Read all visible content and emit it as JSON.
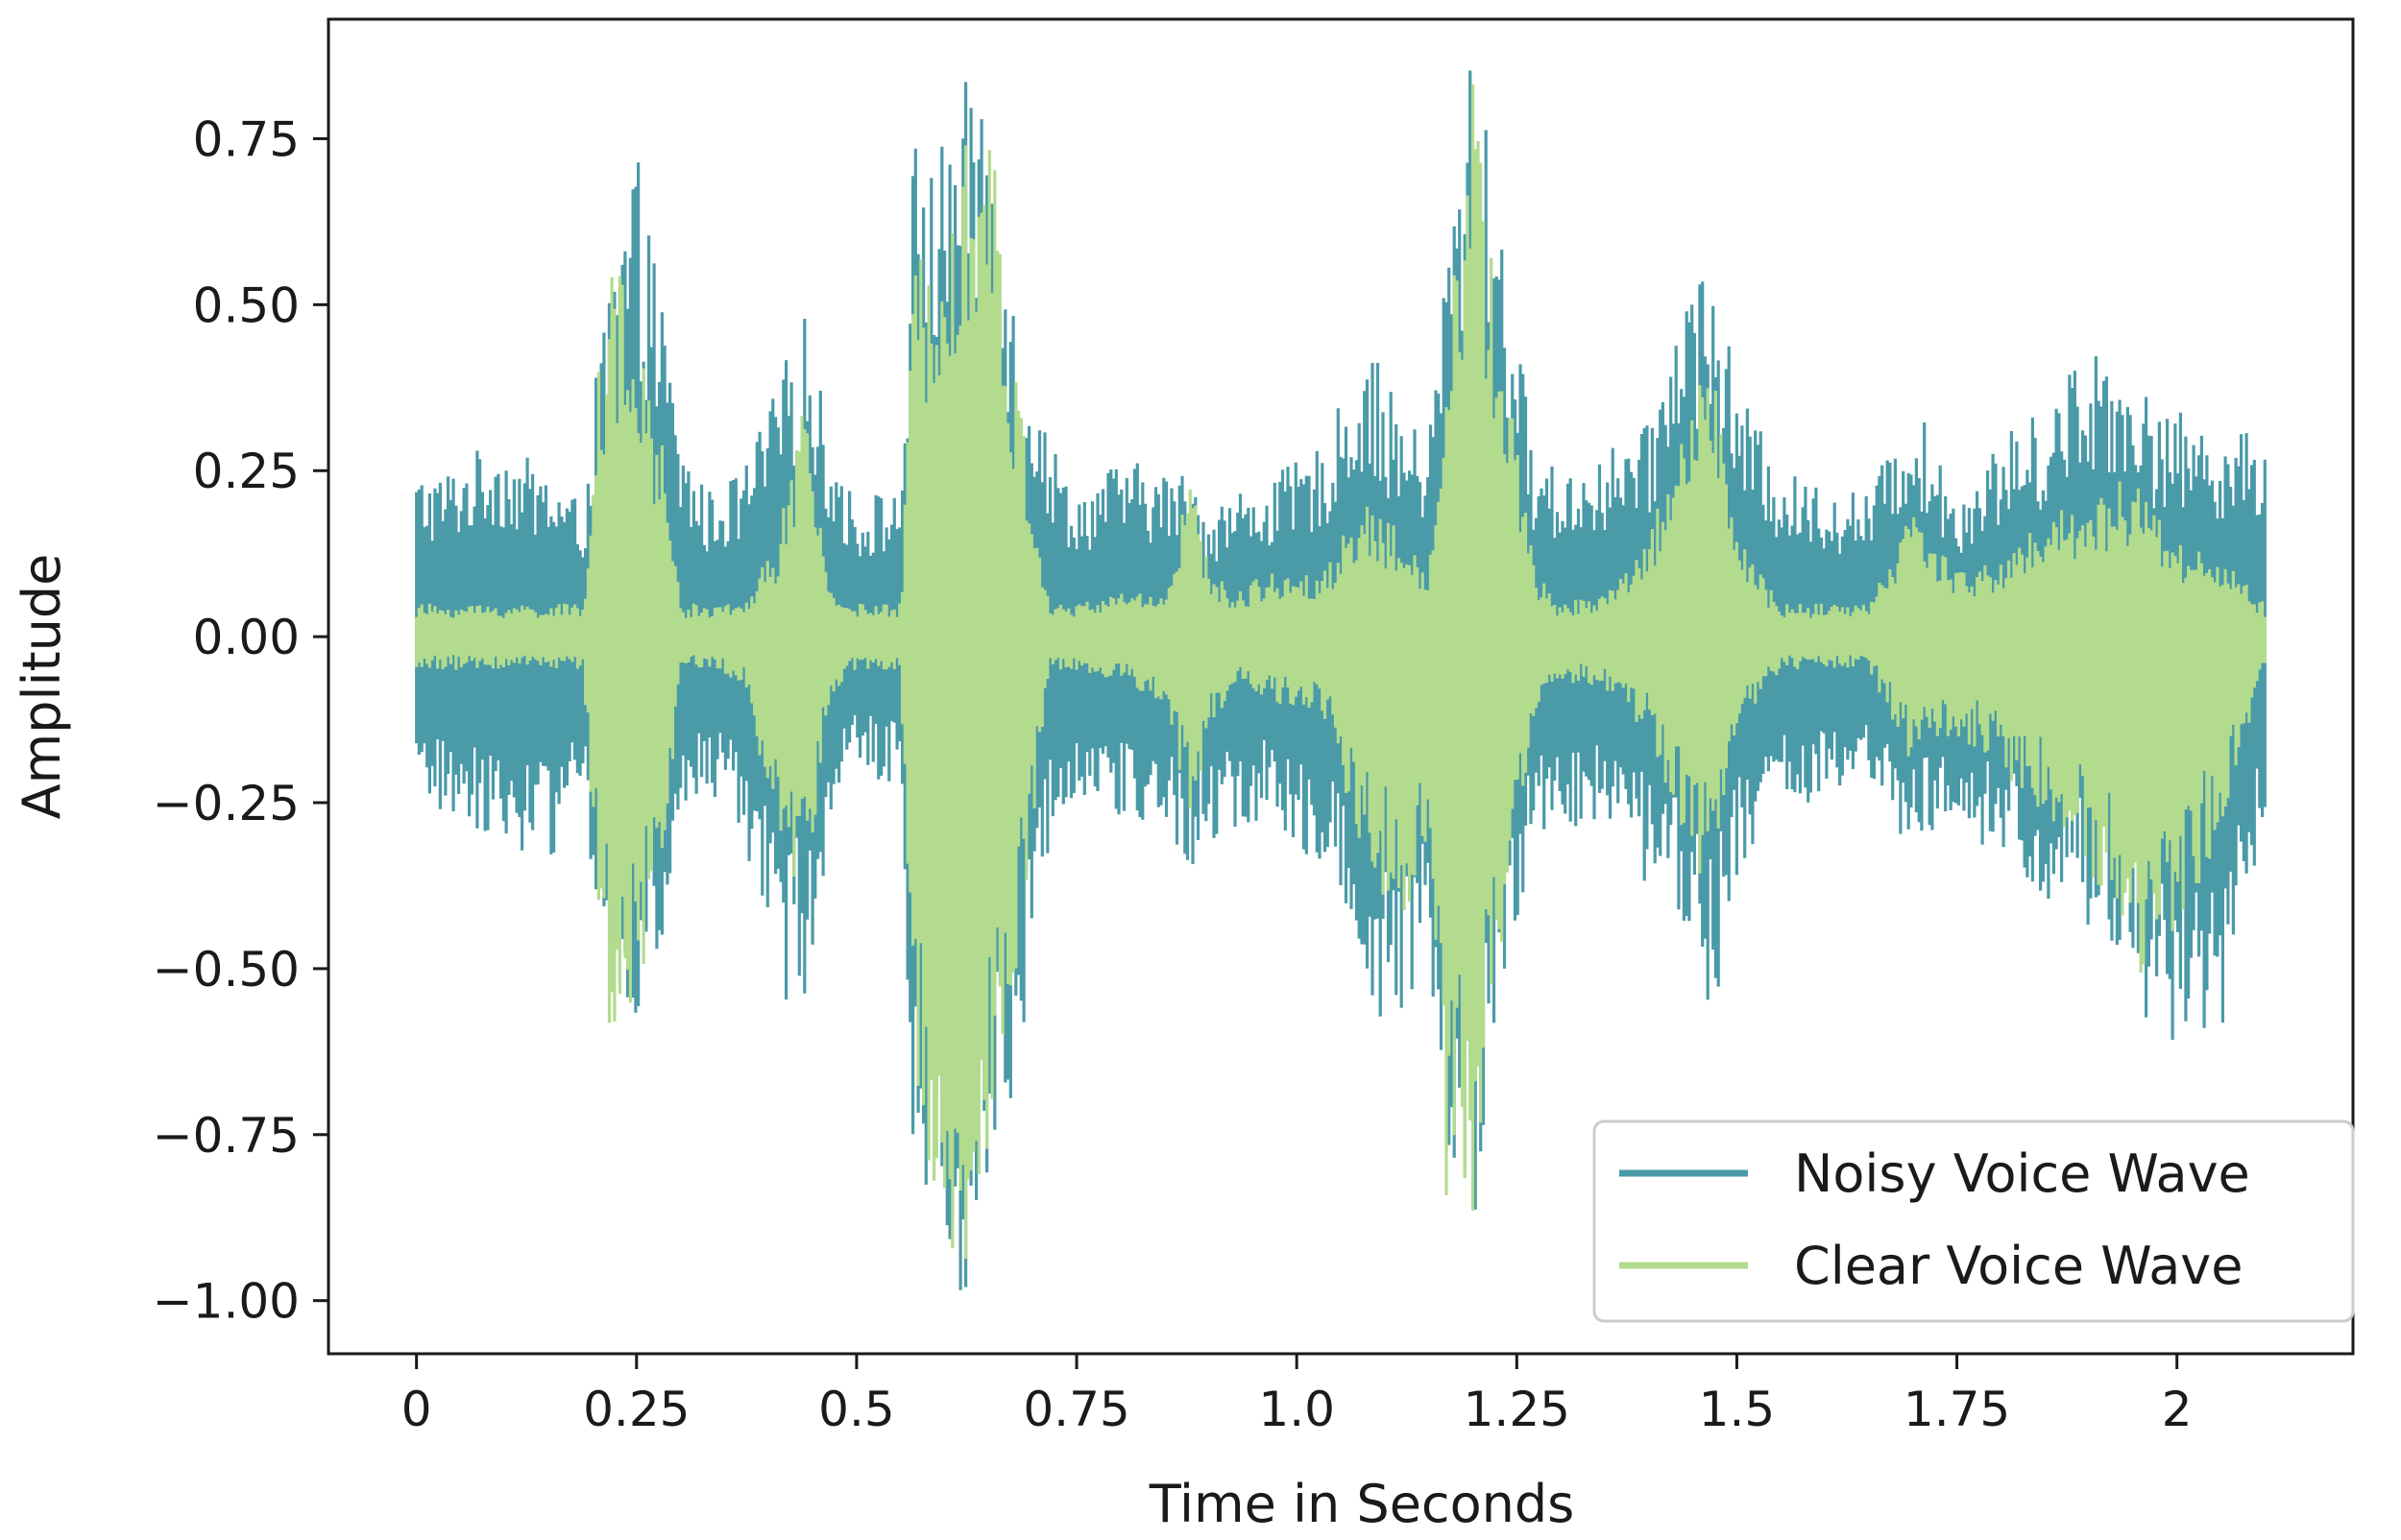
{
  "chart_data": {
    "type": "line",
    "title": "",
    "xlabel": "Time in Seconds",
    "ylabel": "Amplitude",
    "xlim": [
      -0.1,
      2.2
    ],
    "ylim": [
      -1.08,
      0.93
    ],
    "x_ticks": [
      0,
      0.25,
      0.5,
      0.75,
      1.0,
      1.25,
      1.5,
      1.75,
      2
    ],
    "x_tick_labels": [
      "0",
      "0.25",
      "0.5",
      "0.75",
      "1.0",
      "1.25",
      "1.5",
      "1.75",
      "2"
    ],
    "y_ticks": [
      0.75,
      0.5,
      0.25,
      0.0,
      -0.25,
      -0.5,
      -0.75,
      -1.0
    ],
    "y_tick_labels": [
      "0.75",
      "0.50",
      "0.25",
      "0.00",
      "−0.25",
      "−0.50",
      "−0.75",
      "−1.00"
    ],
    "grid": false,
    "legend_position": "lower-right",
    "duration_seconds": 2.1,
    "series": [
      {
        "name": "Noisy Voice Wave",
        "color": "#4a9aa8",
        "envelope_x": [
          0,
          0.03,
          0.09,
          0.15,
          0.19,
          0.2,
          0.22,
          0.25,
          0.28,
          0.3,
          0.33,
          0.37,
          0.41,
          0.44,
          0.47,
          0.5,
          0.52,
          0.55,
          0.565,
          0.59,
          0.62,
          0.65,
          0.68,
          0.72,
          0.75,
          0.8,
          0.85,
          0.88,
          0.9,
          0.93,
          0.97,
          1.03,
          1.08,
          1.12,
          1.15,
          1.17,
          1.2,
          1.23,
          1.27,
          1.3,
          1.35,
          1.4,
          1.44,
          1.47,
          1.5,
          1.55,
          1.6,
          1.65,
          1.7,
          1.75,
          1.8,
          1.85,
          1.9,
          1.95,
          1.97,
          2.0,
          2.05,
          2.1
        ],
        "envelope_upper": [
          0.25,
          0.25,
          0.3,
          0.25,
          0.2,
          0.35,
          0.55,
          0.73,
          0.5,
          0.3,
          0.22,
          0.25,
          0.38,
          0.5,
          0.3,
          0.2,
          0.22,
          0.22,
          0.75,
          0.72,
          0.83,
          0.87,
          0.5,
          0.3,
          0.22,
          0.27,
          0.25,
          0.25,
          0.2,
          0.22,
          0.24,
          0.29,
          0.45,
          0.33,
          0.3,
          0.6,
          0.9,
          0.65,
          0.28,
          0.25,
          0.28,
          0.32,
          0.55,
          0.58,
          0.38,
          0.25,
          0.23,
          0.22,
          0.36,
          0.22,
          0.3,
          0.35,
          0.45,
          0.42,
          0.35,
          0.34,
          0.32,
          0.3
        ],
        "envelope_lower": [
          -0.25,
          -0.27,
          -0.3,
          -0.35,
          -0.2,
          -0.38,
          -0.65,
          -0.58,
          -0.48,
          -0.28,
          -0.24,
          -0.3,
          -0.55,
          -0.55,
          -0.3,
          -0.2,
          -0.22,
          -0.22,
          -0.8,
          -0.9,
          -1.0,
          -0.85,
          -0.7,
          -0.3,
          -0.23,
          -0.28,
          -0.3,
          -0.35,
          -0.33,
          -0.3,
          -0.28,
          -0.35,
          -0.56,
          -0.6,
          -0.5,
          -0.85,
          -0.9,
          -0.6,
          -0.3,
          -0.28,
          -0.3,
          -0.38,
          -0.45,
          -0.6,
          -0.36,
          -0.26,
          -0.25,
          -0.24,
          -0.33,
          -0.3,
          -0.35,
          -0.4,
          -0.45,
          -0.55,
          -0.68,
          -0.6,
          -0.6,
          -0.3
        ]
      },
      {
        "name": "Clear Voice Wave",
        "color": "#b2db8e",
        "envelope_x": [
          0,
          0.03,
          0.09,
          0.15,
          0.19,
          0.2,
          0.22,
          0.25,
          0.28,
          0.3,
          0.33,
          0.37,
          0.41,
          0.44,
          0.47,
          0.5,
          0.52,
          0.55,
          0.565,
          0.59,
          0.62,
          0.65,
          0.68,
          0.72,
          0.75,
          0.8,
          0.85,
          0.88,
          0.9,
          0.93,
          0.97,
          1.03,
          1.08,
          1.12,
          1.15,
          1.17,
          1.2,
          1.23,
          1.27,
          1.3,
          1.35,
          1.4,
          1.44,
          1.47,
          1.5,
          1.55,
          1.6,
          1.65,
          1.7,
          1.75,
          1.8,
          1.85,
          1.9,
          1.95,
          1.97,
          2.0,
          2.05,
          2.1
        ],
        "envelope_upper": [
          0.05,
          0.05,
          0.05,
          0.05,
          0.05,
          0.3,
          0.6,
          0.45,
          0.3,
          0.05,
          0.05,
          0.05,
          0.15,
          0.35,
          0.08,
          0.05,
          0.05,
          0.05,
          0.55,
          0.7,
          0.8,
          0.82,
          0.4,
          0.05,
          0.05,
          0.07,
          0.07,
          0.25,
          0.1,
          0.07,
          0.1,
          0.1,
          0.22,
          0.15,
          0.1,
          0.5,
          0.85,
          0.5,
          0.1,
          0.05,
          0.07,
          0.15,
          0.35,
          0.45,
          0.15,
          0.05,
          0.05,
          0.05,
          0.2,
          0.1,
          0.12,
          0.18,
          0.22,
          0.25,
          0.2,
          0.15,
          0.12,
          0.05
        ],
        "envelope_lower": [
          -0.05,
          -0.05,
          -0.05,
          -0.05,
          -0.05,
          -0.35,
          -0.6,
          -0.55,
          -0.35,
          -0.05,
          -0.05,
          -0.07,
          -0.3,
          -0.4,
          -0.1,
          -0.05,
          -0.05,
          -0.05,
          -0.72,
          -0.85,
          -0.97,
          -0.8,
          -0.55,
          -0.05,
          -0.05,
          -0.07,
          -0.1,
          -0.3,
          -0.15,
          -0.07,
          -0.1,
          -0.12,
          -0.35,
          -0.45,
          -0.3,
          -0.85,
          -0.9,
          -0.5,
          -0.12,
          -0.07,
          -0.08,
          -0.15,
          -0.3,
          -0.4,
          -0.15,
          -0.05,
          -0.05,
          -0.05,
          -0.2,
          -0.15,
          -0.2,
          -0.28,
          -0.35,
          -0.48,
          -0.55,
          -0.45,
          -0.3,
          -0.05
        ]
      }
    ]
  }
}
